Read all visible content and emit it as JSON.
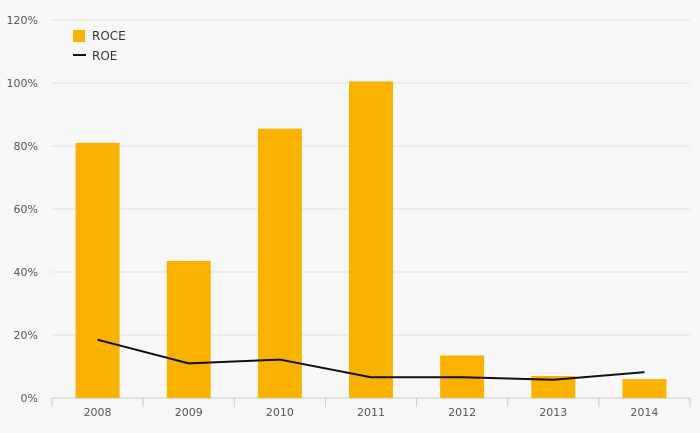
{
  "chart_data": {
    "type": "bar",
    "categories": [
      "2008",
      "2009",
      "2010",
      "2011",
      "2012",
      "2013",
      "2014"
    ],
    "series": [
      {
        "name": "ROCE",
        "type": "bar",
        "color": "#f9b200",
        "values": [
          81,
          43.5,
          85.5,
          100.5,
          13.5,
          7,
          6
        ]
      },
      {
        "name": "ROE",
        "type": "line",
        "color": "#111111",
        "values": [
          18.5,
          11,
          12.2,
          6.6,
          6.6,
          5.8,
          8.2
        ]
      }
    ],
    "ylim": [
      0,
      120
    ],
    "yticks": [
      "0%",
      "20%",
      "40%",
      "60%",
      "80%",
      "100%",
      "120%"
    ],
    "ytick_values": [
      0,
      20,
      40,
      60,
      80,
      100,
      120
    ],
    "grid": true,
    "legend_position": "top-left",
    "title": "",
    "xlabel": "",
    "ylabel": ""
  }
}
